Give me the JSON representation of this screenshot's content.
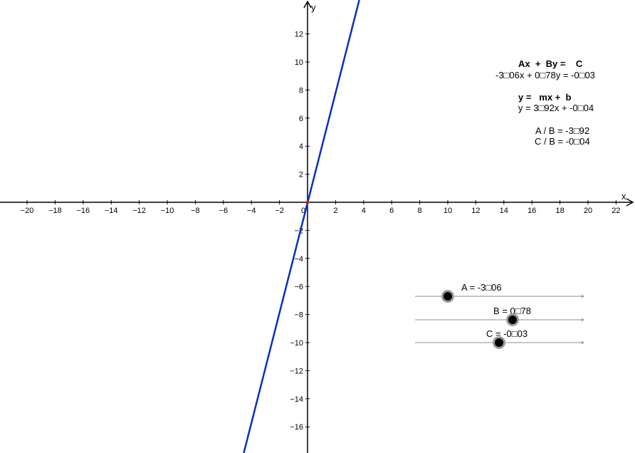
{
  "graph": {
    "x_axis_label": "x",
    "y_axis_label": "y",
    "x_ticks": [
      "−20",
      "−18",
      "−16",
      "−14",
      "−12",
      "−10",
      "−8",
      "−6",
      "−4",
      "−2",
      "0",
      "2",
      "4",
      "6",
      "8",
      "10",
      "12",
      "14",
      "16",
      "18",
      "20",
      "22"
    ],
    "y_ticks_positive": [
      "2",
      "4",
      "6",
      "8",
      "10",
      "12"
    ],
    "y_ticks_negative": [
      "−2",
      "−4",
      "−6",
      "−8",
      "−10",
      "−12",
      "−14",
      "−16"
    ],
    "line_color": "#0a2fbf",
    "origin_point_color": "#c2271b"
  },
  "line": {
    "slope": 3.92,
    "intercept": -0.04
  },
  "info": {
    "standard_form_title": "Ax  +  By =    C",
    "standard_form_values": "-3□06x + 0□78y = -0□03",
    "slope_form_title": "y =   mx +  b",
    "slope_form_values": "y = 3□92x + -0□04",
    "a_over_b": "A / B = -3□92",
    "c_over_b": "C / B = -0□04"
  },
  "sliders": [
    {
      "label": "A = -3□06",
      "value": -3.06,
      "min": -5,
      "max": 5
    },
    {
      "label": "B = 0□78",
      "value": 0.78,
      "min": -5,
      "max": 5
    },
    {
      "label": "C = -0□03",
      "value": -0.03,
      "min": -5,
      "max": 5
    }
  ]
}
